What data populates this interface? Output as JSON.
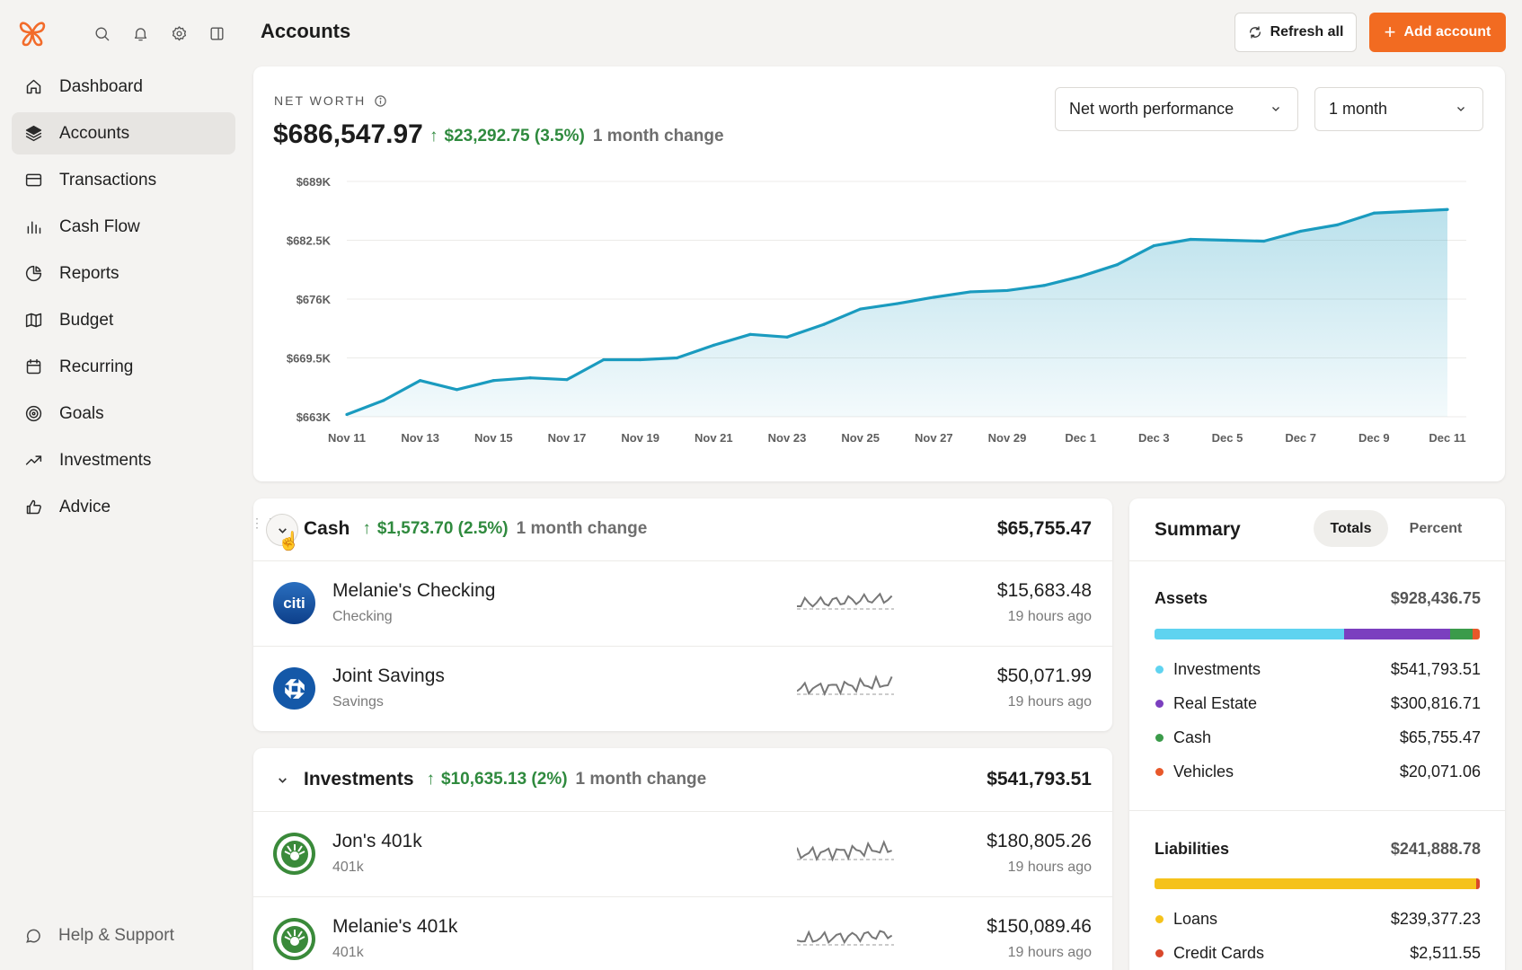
{
  "header": {
    "title": "Accounts",
    "refresh_label": "Refresh all",
    "add_label": "Add account"
  },
  "sidebar": {
    "items": [
      {
        "label": "Dashboard",
        "icon": "home-icon"
      },
      {
        "label": "Accounts",
        "icon": "layers-icon"
      },
      {
        "label": "Transactions",
        "icon": "card-icon"
      },
      {
        "label": "Cash Flow",
        "icon": "bar-chart-icon"
      },
      {
        "label": "Reports",
        "icon": "pie-chart-icon"
      },
      {
        "label": "Budget",
        "icon": "map-icon"
      },
      {
        "label": "Recurring",
        "icon": "calendar-icon"
      },
      {
        "label": "Goals",
        "icon": "target-icon"
      },
      {
        "label": "Investments",
        "icon": "trend-icon"
      },
      {
        "label": "Advice",
        "icon": "thumbs-up-icon"
      }
    ],
    "help_label": "Help & Support"
  },
  "net_worth": {
    "label": "NET WORTH",
    "value": "$686,547.97",
    "change": "$23,292.75 (3.5%)",
    "change_period": "1 month change",
    "view_select": "Net worth performance",
    "range_select": "1 month"
  },
  "chart_data": {
    "type": "area",
    "x": [
      "Nov 11",
      "Nov 12",
      "Nov 13",
      "Nov 14",
      "Nov 15",
      "Nov 16",
      "Nov 17",
      "Nov 18",
      "Nov 19",
      "Nov 20",
      "Nov 21",
      "Nov 22",
      "Nov 23",
      "Nov 24",
      "Nov 25",
      "Nov 26",
      "Nov 27",
      "Nov 28",
      "Nov 29",
      "Nov 30",
      "Dec 1",
      "Dec 2",
      "Dec 3",
      "Dec 4",
      "Dec 5",
      "Dec 6",
      "Dec 7",
      "Dec 8",
      "Dec 9",
      "Dec 10",
      "Dec 11"
    ],
    "x_tick_labels": [
      "Nov 11",
      "Nov 13",
      "Nov 15",
      "Nov 17",
      "Nov 19",
      "Nov 21",
      "Nov 23",
      "Nov 25",
      "Nov 27",
      "Nov 29",
      "Dec 1",
      "Dec 3",
      "Dec 5",
      "Dec 7",
      "Dec 9",
      "Dec 11"
    ],
    "values": [
      663250,
      664800,
      667000,
      666000,
      667000,
      667300,
      667100,
      669300,
      669300,
      669500,
      670900,
      672100,
      671800,
      673200,
      674900,
      675500,
      676200,
      676800,
      676950,
      677500,
      678500,
      679800,
      681900,
      682600,
      682500,
      682400,
      683500,
      684200,
      685500,
      685700,
      685900
    ],
    "y_tick_labels": [
      "$689K",
      "$682.5K",
      "$676K",
      "$669.5K",
      "$663K"
    ],
    "ylim": [
      663000,
      689000
    ],
    "color": "#1a9bbf",
    "grid": true
  },
  "cash": {
    "label": "Cash",
    "change": "$1,573.70 (2.5%)",
    "change_period": "1 month change",
    "total": "$65,755.47",
    "accounts": [
      {
        "name": "Melanie's Checking",
        "type": "Checking",
        "balance": "$15,683.48",
        "updated": "19 hours ago",
        "logo": "citi"
      },
      {
        "name": "Joint Savings",
        "type": "Savings",
        "balance": "$50,071.99",
        "updated": "19 hours ago",
        "logo": "chase"
      }
    ]
  },
  "investments": {
    "label": "Investments",
    "change": "$10,635.13 (2%)",
    "change_period": "1 month change",
    "total": "$541,793.51",
    "accounts": [
      {
        "name": "Jon's 401k",
        "type": "401k",
        "balance": "$180,805.26",
        "updated": "19 hours ago",
        "logo": "fidelity"
      },
      {
        "name": "Melanie's 401k",
        "type": "401k",
        "balance": "$150,089.46",
        "updated": "19 hours ago",
        "logo": "fidelity"
      }
    ]
  },
  "summary": {
    "title": "Summary",
    "tab_totals": "Totals",
    "tab_percent": "Percent",
    "assets": {
      "label": "Assets",
      "total": "$928,436.75",
      "items": [
        {
          "label": "Investments",
          "value": "$541,793.51",
          "color": "#5fd3f0",
          "share": 0.5836
        },
        {
          "label": "Real Estate",
          "value": "$300,816.71",
          "color": "#7b3fbf",
          "share": 0.324
        },
        {
          "label": "Cash",
          "value": "$65,755.47",
          "color": "#3b9b4a",
          "share": 0.0708
        },
        {
          "label": "Vehicles",
          "value": "$20,071.06",
          "color": "#e8582a",
          "share": 0.0216
        }
      ]
    },
    "liabilities": {
      "label": "Liabilities",
      "total": "$241,888.78",
      "items": [
        {
          "label": "Loans",
          "value": "$239,377.23",
          "color": "#f5c21b",
          "share": 0.9896
        },
        {
          "label": "Credit Cards",
          "value": "$2,511.55",
          "color": "#d9472b",
          "share": 0.0104
        }
      ]
    }
  }
}
